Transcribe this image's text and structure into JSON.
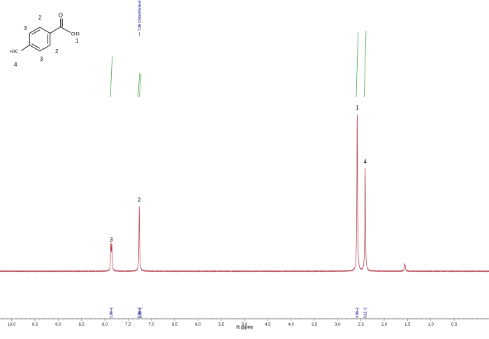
{
  "chart_data": {
    "type": "line",
    "title": "",
    "xlabel": "f1 (ppm)",
    "ylabel": "",
    "xlim": [
      10.25,
      -0.25
    ],
    "x_reversed": true,
    "x_ticks": [
      10.0,
      9.5,
      9.0,
      8.5,
      8.0,
      7.5,
      7.0,
      6.5,
      6.0,
      5.5,
      5.0,
      4.5,
      4.0,
      3.5,
      3.0,
      2.5,
      2.0,
      1.5,
      1.0,
      0.5
    ],
    "x_tick_labels": [
      "10.0",
      "9.5",
      "9.0",
      "8.5",
      "8.0",
      "7.5",
      "7.0",
      "6.5",
      "6.0",
      "5.5",
      "5.0",
      "4.5",
      "4.0",
      "3.5",
      "3.0",
      "2.5",
      "2.0",
      "1.5",
      "1.0",
      "0.5"
    ],
    "ylim": [
      0,
      1.0
    ],
    "grid": false,
    "spectrum_color": "#b03040",
    "integral_curve_color": "#2e9a2e",
    "integral_label_color": "#1b1b8f",
    "peaks": [
      {
        "label": "3",
        "ppm": 7.86,
        "height": 0.16
      },
      {
        "label": "2",
        "ppm": 7.26,
        "height": 0.41
      },
      {
        "label": "1",
        "ppm": 2.58,
        "height": 0.99
      },
      {
        "label": "4",
        "ppm": 2.41,
        "height": 0.65
      },
      {
        "label": "",
        "ppm": 1.56,
        "height": 0.045
      }
    ],
    "reference_peak": {
      "ppm": 7.26,
      "label": "7.26 Chloroform-d"
    },
    "integrals": [
      {
        "ppm": 7.86,
        "value": "1.98"
      },
      {
        "ppm": 7.26,
        "value": "2.04"
      },
      {
        "ppm": 7.24,
        "value": "1.98"
      },
      {
        "ppm": 2.58,
        "value": "3.00"
      },
      {
        "ppm": 2.41,
        "value": "3.11"
      }
    ]
  },
  "molecule": {
    "name": "4'-methylacetophenone",
    "position_labels": [
      "2",
      "3",
      "1",
      "2",
      "3",
      "4"
    ],
    "methyl_ring": "H3C",
    "methyl_acyl": "CH3",
    "carbonyl_atom": "O"
  }
}
